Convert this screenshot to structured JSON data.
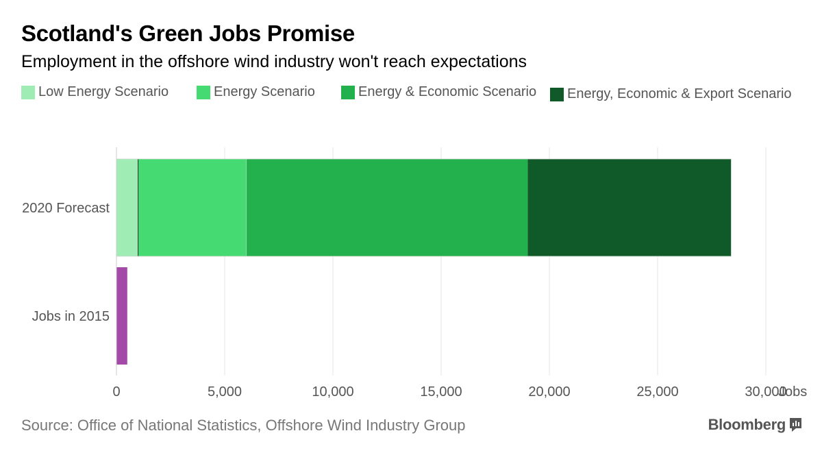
{
  "header": {
    "title": "Scotland's Green Jobs Promise",
    "subtitle": "Employment in the offshore wind industry won't reach expectations"
  },
  "legend": [
    {
      "label": "Low Energy Scenario",
      "color": "#9fedb5"
    },
    {
      "label": "Energy Scenario",
      "color": "#45da72"
    },
    {
      "label": "Energy & Economic Scenario",
      "color": "#22b14c"
    },
    {
      "label": "Energy, Economic & Export Scenario",
      "color": "#0f5a28"
    }
  ],
  "chart_data": {
    "type": "bar",
    "orientation": "horizontal",
    "stacking": "overlapping cumulative scenarios",
    "title": "Scotland's Green Jobs Promise",
    "subtitle": "Employment in the offshore wind industry won't reach expectations",
    "xlabel": "Jobs",
    "xlim": [
      0,
      30000
    ],
    "x_ticks": [
      0,
      5000,
      10000,
      15000,
      20000,
      25000,
      30000
    ],
    "x_tick_labels": [
      "0",
      "5,000",
      "10,000",
      "15,000",
      "20,000",
      "25,000",
      "30,000"
    ],
    "x_unit_label": "Jobs",
    "grid": true,
    "legend_position": "top",
    "categories": [
      "2020 Forecast",
      "Jobs in 2015"
    ],
    "forecast_segments": [
      {
        "name": "Low Energy Scenario",
        "start": 0,
        "end": 1000,
        "color": "#9fedb5"
      },
      {
        "name": "Energy Scenario",
        "start": 1000,
        "end": 6000,
        "color": "#45da72"
      },
      {
        "name": "Energy & Economic Scenario",
        "start": 6000,
        "end": 19000,
        "color": "#22b14c"
      },
      {
        "name": "Energy, Economic & Export Scenario",
        "start": 19000,
        "end": 28400,
        "color": "#0f5a28"
      }
    ],
    "actual": {
      "name": "Jobs in 2015",
      "value": 500,
      "color": "#a34aa8"
    }
  },
  "footer": {
    "source": "Source: Office of National Statistics, Offshore Wind Industry Group",
    "brand": "Bloomberg"
  }
}
